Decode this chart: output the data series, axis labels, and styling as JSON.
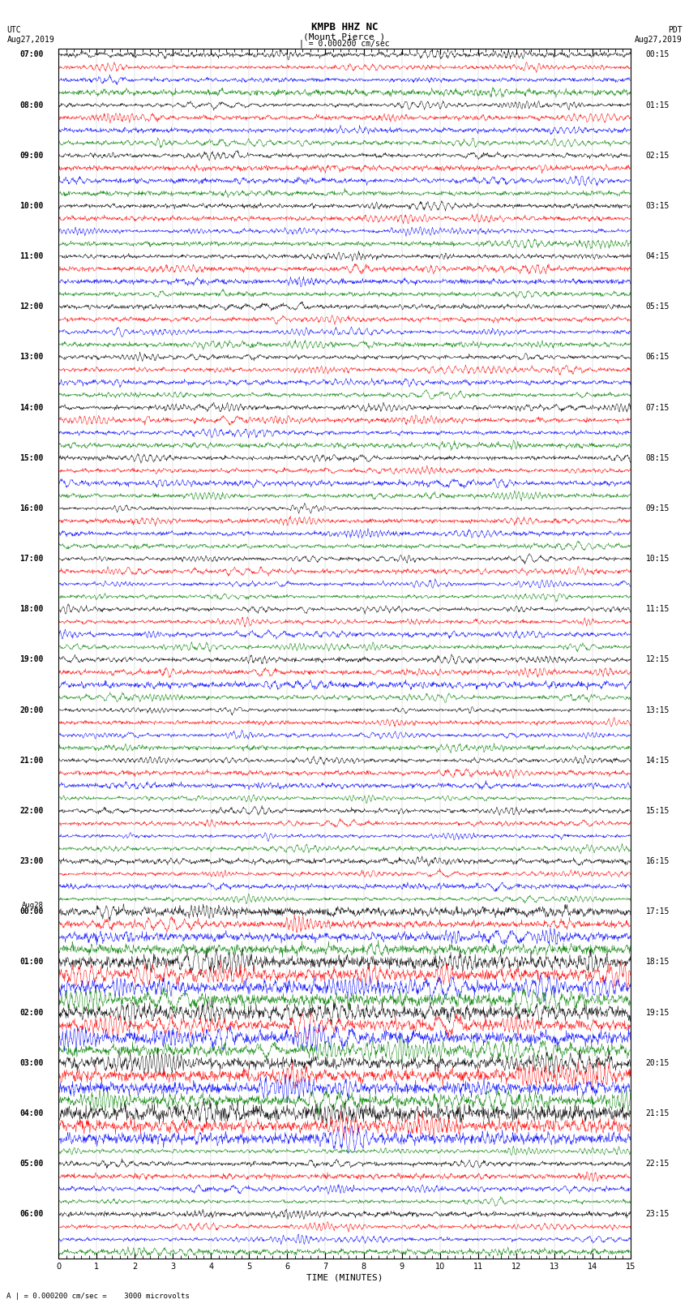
{
  "title_line1": "KMPB HHZ NC",
  "title_line2": "(Mount Pierce )",
  "title_scale": "| = 0.000200 cm/sec",
  "label_left_top": "UTC",
  "label_left_date": "Aug27,2019",
  "label_right_top": "PDT",
  "label_right_date": "Aug27,2019",
  "xlabel": "TIME (MINUTES)",
  "footer": "A | = 0.000200 cm/sec =    3000 microvolts",
  "colors": [
    "black",
    "red",
    "blue",
    "green"
  ],
  "utc_labels": [
    [
      "07:00",
      0
    ],
    [
      "08:00",
      4
    ],
    [
      "09:00",
      8
    ],
    [
      "10:00",
      12
    ],
    [
      "11:00",
      16
    ],
    [
      "12:00",
      20
    ],
    [
      "13:00",
      24
    ],
    [
      "14:00",
      28
    ],
    [
      "15:00",
      32
    ],
    [
      "16:00",
      36
    ],
    [
      "17:00",
      40
    ],
    [
      "18:00",
      44
    ],
    [
      "19:00",
      48
    ],
    [
      "20:00",
      52
    ],
    [
      "21:00",
      56
    ],
    [
      "22:00",
      60
    ],
    [
      "23:00",
      64
    ],
    [
      "Aug28",
      68
    ],
    [
      "00:00",
      68
    ],
    [
      "01:00",
      72
    ],
    [
      "02:00",
      76
    ],
    [
      "03:00",
      80
    ],
    [
      "04:00",
      84
    ],
    [
      "05:00",
      88
    ],
    [
      "06:00",
      92
    ]
  ],
  "pdt_labels": [
    [
      "00:15",
      0
    ],
    [
      "01:15",
      4
    ],
    [
      "02:15",
      8
    ],
    [
      "03:15",
      12
    ],
    [
      "04:15",
      16
    ],
    [
      "05:15",
      20
    ],
    [
      "06:15",
      24
    ],
    [
      "07:15",
      28
    ],
    [
      "08:15",
      32
    ],
    [
      "09:15",
      36
    ],
    [
      "10:15",
      40
    ],
    [
      "11:15",
      44
    ],
    [
      "12:15",
      48
    ],
    [
      "13:15",
      52
    ],
    [
      "14:15",
      56
    ],
    [
      "15:15",
      60
    ],
    [
      "16:15",
      64
    ],
    [
      "17:15",
      68
    ],
    [
      "18:15",
      72
    ],
    [
      "19:15",
      76
    ],
    [
      "20:15",
      80
    ],
    [
      "21:15",
      84
    ],
    [
      "22:15",
      88
    ],
    [
      "23:15",
      92
    ]
  ],
  "n_rows": 96,
  "minutes_per_row": 15,
  "xlim": [
    0,
    15
  ],
  "xticks": [
    0,
    1,
    2,
    3,
    4,
    5,
    6,
    7,
    8,
    9,
    10,
    11,
    12,
    13,
    14,
    15
  ],
  "amplitude_scale": 0.42,
  "bg_color": "white",
  "font_size_labels": 7,
  "font_size_title": 8,
  "font_size_axis": 8,
  "font_size_tick": 7,
  "dpi": 100,
  "lw": 0.35
}
